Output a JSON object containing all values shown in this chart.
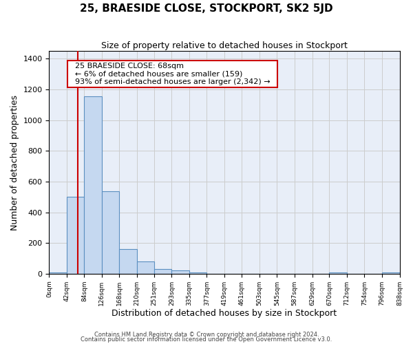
{
  "title": "25, BRAESIDE CLOSE, STOCKPORT, SK2 5JD",
  "subtitle": "Size of property relative to detached houses in Stockport",
  "xlabel": "Distribution of detached houses by size in Stockport",
  "ylabel": "Number of detached properties",
  "property_size": 68,
  "annotation_title": "25 BRAESIDE CLOSE: 68sqm",
  "annotation_line1": "← 6% of detached houses are smaller (159)",
  "annotation_line2": "93% of semi-detached houses are larger (2,342) →",
  "bar_edges": [
    0,
    42,
    84,
    126,
    168,
    210,
    251,
    293,
    335,
    377,
    419,
    461,
    503,
    545,
    587,
    629,
    670,
    712,
    754,
    796,
    838
  ],
  "bar_heights": [
    10,
    500,
    1155,
    535,
    160,
    80,
    30,
    20,
    10,
    0,
    0,
    0,
    0,
    0,
    0,
    0,
    10,
    0,
    0,
    10
  ],
  "bar_color": "#c5d8f0",
  "bar_edge_color": "#5a8fc0",
  "red_line_color": "#cc0000",
  "grid_color": "#cccccc",
  "background_color": "#e8eef8",
  "ylim": [
    0,
    1450
  ],
  "yticks": [
    0,
    200,
    400,
    600,
    800,
    1000,
    1200,
    1400
  ],
  "footnote1": "Contains HM Land Registry data © Crown copyright and database right 2024.",
  "footnote2": "Contains public sector information licensed under the Open Government Licence v3.0."
}
